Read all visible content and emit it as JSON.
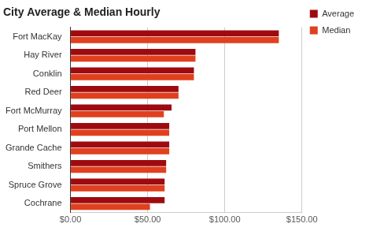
{
  "chart_data": {
    "type": "bar",
    "orientation": "horizontal",
    "title": "City Average & Median Hourly",
    "categories": [
      "Fort MacKay",
      "Hay River",
      "Conklin",
      "Red Deer",
      "Fort McMurray",
      "Port Mellon",
      "Grande Cache",
      "Smithers",
      "Spruce Grove",
      "Cochrane"
    ],
    "series": [
      {
        "name": "Average",
        "color": "#9e0b0f",
        "values": [
          135,
          81,
          80,
          70,
          65.5,
          64,
          64,
          62,
          61,
          61
        ]
      },
      {
        "name": "Median",
        "color": "#e0401e",
        "values": [
          135,
          81,
          80,
          70,
          60.5,
          64,
          64,
          62,
          61,
          51.5
        ]
      }
    ],
    "xlim": [
      0,
      150
    ],
    "xticks": [
      {
        "value": 0,
        "label": "$0.00"
      },
      {
        "value": 50,
        "label": "$50.00"
      },
      {
        "value": 100,
        "label": "$100.00"
      },
      {
        "value": 150,
        "label": "$150.00"
      }
    ],
    "grid": true,
    "legend": "top-right"
  }
}
